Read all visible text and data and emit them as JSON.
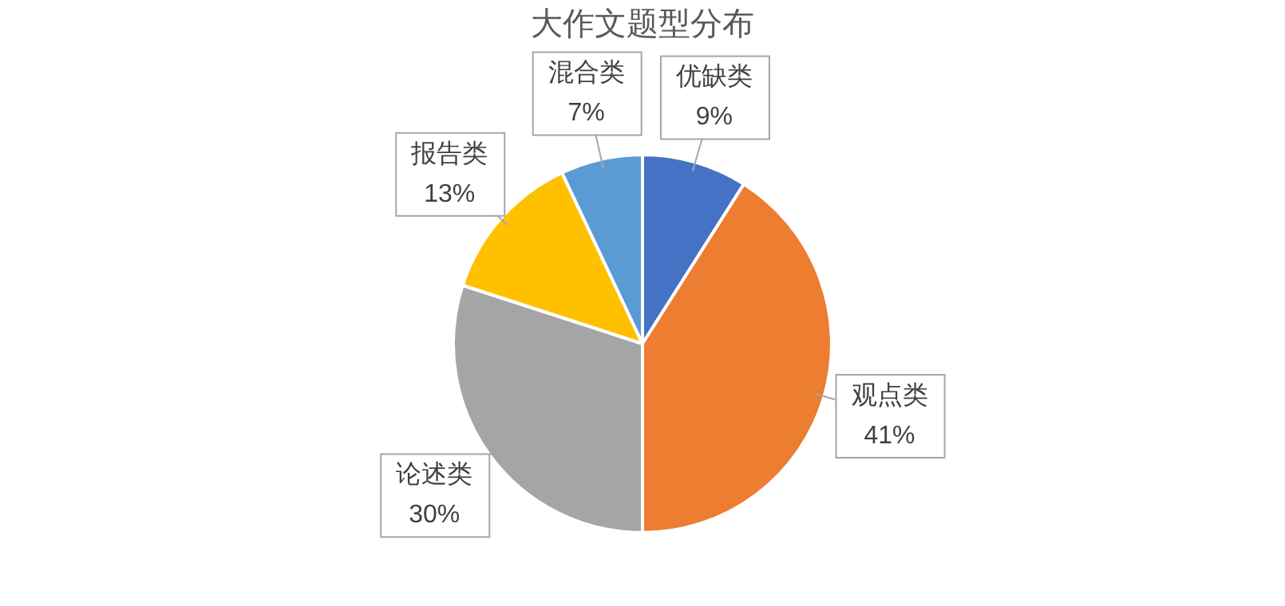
{
  "chart_data": {
    "type": "pie",
    "title": "大作文题型分布",
    "categories": [
      "优缺类",
      "观点类",
      "论述类",
      "报告类",
      "混合类"
    ],
    "values": [
      9,
      41,
      30,
      13,
      7
    ],
    "colors": [
      "#4472c4",
      "#ed7d31",
      "#a5a5a5",
      "#ffc000",
      "#5b9bd5"
    ],
    "value_labels": [
      "9%",
      "41%",
      "30%",
      "13%",
      "7%"
    ],
    "legend": false
  }
}
